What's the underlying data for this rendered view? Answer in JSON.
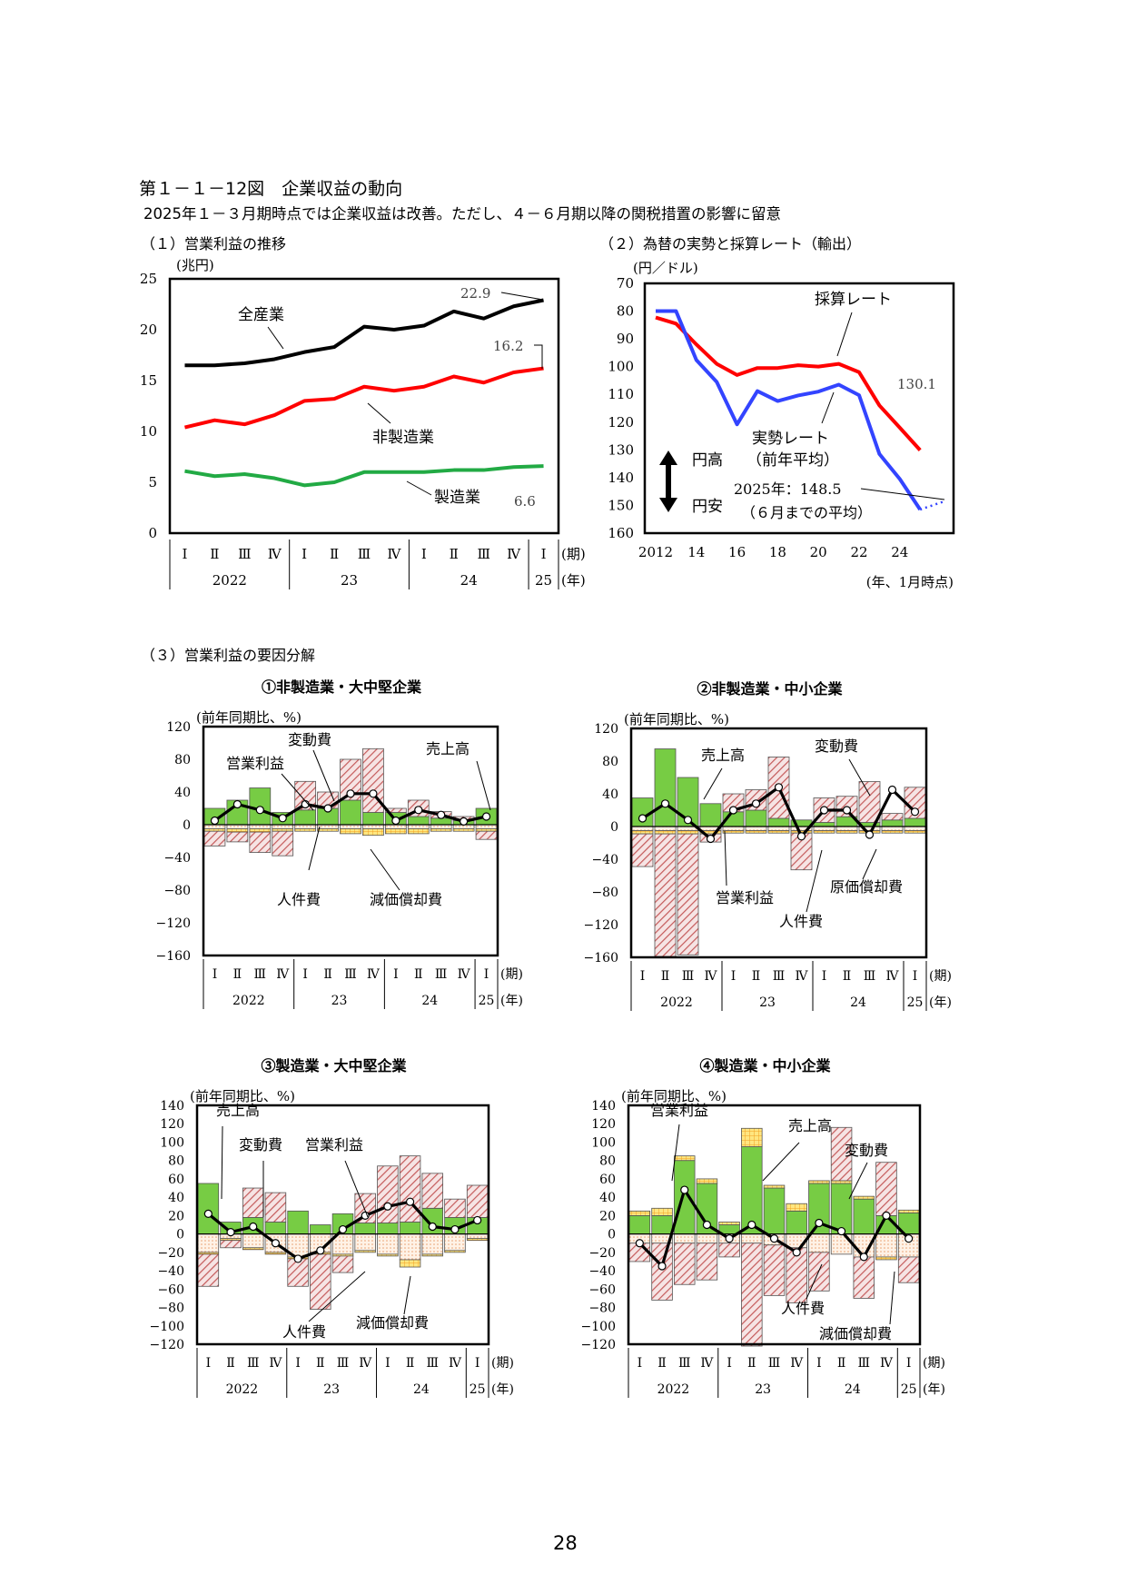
{
  "header": {
    "title": "第１－１－12図　企業収益の動向",
    "subtitle": "2025年１－３月期時点では企業収益は改善。ただし、４－６月期以降の関税措置の影響に留意",
    "section1": "（１）営業利益の推移",
    "section2": "（２）為替の実勢と採算レート（輸出）",
    "section3": "（３）営業利益の要因分解"
  },
  "page_number": "28",
  "colors": {
    "all": "#000000",
    "nonmfg": "#ff0000",
    "mfg": "#22aa44",
    "saisan": "#ff0000",
    "jissei": "#3344ff",
    "sales": "#77cc44",
    "varcost": "#cc7777",
    "labor": "#ffe0c8",
    "depr": "#ffcc33"
  },
  "chart_data": [
    {
      "id": "chart1",
      "type": "line",
      "unit": "(兆円)",
      "ylim": [
        0,
        25
      ],
      "yticks": [
        "0",
        "5",
        "10",
        "15",
        "20",
        "25"
      ],
      "quarters": [
        "Ⅰ",
        "Ⅱ",
        "Ⅲ",
        "Ⅳ",
        "Ⅰ",
        "Ⅱ",
        "Ⅲ",
        "Ⅳ",
        "Ⅰ",
        "Ⅱ",
        "Ⅲ",
        "Ⅳ",
        "Ⅰ"
      ],
      "years": [
        "2022",
        "23",
        "24",
        "25"
      ],
      "period_label": "(期)",
      "year_label": "(年)",
      "series": [
        {
          "name": "全産業",
          "values": [
            16.5,
            16.5,
            16.7,
            17.1,
            17.8,
            18.3,
            20.3,
            20.0,
            20.4,
            21.8,
            21.1,
            22.3,
            22.9
          ]
        },
        {
          "name": "非製造業",
          "values": [
            10.4,
            11.1,
            10.7,
            11.6,
            13.0,
            13.2,
            14.4,
            14.0,
            14.4,
            15.4,
            14.8,
            15.8,
            16.2
          ]
        },
        {
          "name": "製造業",
          "values": [
            6.1,
            5.6,
            5.8,
            5.4,
            4.7,
            5.0,
            6.0,
            6.0,
            6.0,
            6.2,
            6.2,
            6.5,
            6.6
          ]
        }
      ],
      "annotations": [
        "22.9",
        "16.2",
        "6.6"
      ]
    },
    {
      "id": "chart2",
      "type": "line",
      "unit": "(円／ドル)",
      "ylim": [
        70,
        160
      ],
      "inverted_y": true,
      "yticks": [
        "70",
        "80",
        "90",
        "100",
        "110",
        "120",
        "130",
        "140",
        "150",
        "160"
      ],
      "xticks": [
        "2012",
        "14",
        "16",
        "18",
        "20",
        "22",
        "24"
      ],
      "x_axis_note": "(年、1月時点)",
      "series": [
        {
          "name": "採算レート",
          "x": [
            2012,
            2013,
            2014,
            2015,
            2016,
            2017,
            2018,
            2019,
            2020,
            2021,
            2022,
            2023,
            2024,
            2025
          ],
          "values": [
            82.3,
            84.5,
            92.0,
            99.0,
            103.0,
            100.5,
            100.5,
            99.5,
            100.0,
            99.0,
            102.0,
            114.0,
            122.0,
            130.1
          ]
        },
        {
          "name": "実勢レート",
          "x": [
            2012,
            2013,
            2014,
            2015,
            2016,
            2017,
            2018,
            2019,
            2020,
            2021,
            2022,
            2023,
            2024,
            2025
          ],
          "values": [
            80.0,
            80.0,
            97.6,
            105.5,
            120.8,
            108.8,
            112.4,
            110.4,
            109.0,
            106.5,
            110.3,
            131.5,
            140.5,
            151.5
          ]
        }
      ],
      "annotations": {
        "saisan_label": "採算レート",
        "jissei_label": "実勢レート",
        "jissei_sub": "（前年平均）",
        "value_130": "130.1",
        "avg_2025": "2025年：148.5",
        "avg_sub": "（６月までの平均）",
        "yen_strong": "円高",
        "yen_weak": "円安"
      }
    },
    {
      "id": "chart3a",
      "type": "bar",
      "title": "①非製造業・大中堅企業",
      "unit": "(前年同期比、%)",
      "ylim": [
        -160,
        120
      ],
      "yticks": [
        "120",
        "80",
        "40",
        "0",
        "−40",
        "−80",
        "−120",
        "−160"
      ],
      "sales": [
        20,
        30,
        45,
        15,
        18,
        20,
        30,
        15,
        15,
        10,
        8,
        5,
        20
      ],
      "varcost": [
        -18,
        -12,
        -25,
        -30,
        35,
        20,
        50,
        78,
        5,
        20,
        8,
        5,
        -10
      ],
      "labor": [
        -5,
        -5,
        -5,
        -5,
        -5,
        -5,
        -5,
        -5,
        -5,
        -5,
        -5,
        -5,
        -5
      ],
      "depr": [
        -3,
        -4,
        -4,
        -3,
        -3,
        -3,
        -6,
        -8,
        -6,
        -6,
        -3,
        -3,
        -3
      ],
      "profit": [
        5,
        25,
        18,
        8,
        25,
        20,
        38,
        38,
        5,
        18,
        12,
        4,
        10
      ],
      "labels": [
        "売上高",
        "変動費",
        "営業利益",
        "人件費",
        "減価償却費"
      ]
    },
    {
      "id": "chart3b",
      "type": "bar",
      "title": "②非製造業・中小企業",
      "unit": "(前年同期比、%)",
      "ylim": [
        -160,
        120
      ],
      "yticks": [
        "120",
        "80",
        "40",
        "0",
        "−40",
        "−80",
        "−120",
        "−160"
      ],
      "sales": [
        35,
        95,
        60,
        28,
        18,
        20,
        10,
        8,
        5,
        12,
        5,
        8,
        10
      ],
      "varcost": [
        -40,
        -150,
        -148,
        -10,
        22,
        25,
        75,
        -45,
        30,
        25,
        50,
        8,
        38
      ],
      "labor": [
        -5,
        -5,
        -5,
        -5,
        -5,
        -5,
        -5,
        -5,
        -5,
        -5,
        -5,
        -5,
        -5
      ],
      "depr": [
        -4,
        -4,
        -4,
        -4,
        -3,
        -3,
        -3,
        -3,
        -3,
        -3,
        -3,
        -3,
        -3
      ],
      "profit": [
        10,
        28,
        8,
        -15,
        20,
        28,
        48,
        -12,
        20,
        20,
        -10,
        45,
        18
      ],
      "labels": [
        "売上高",
        "変動費",
        "営業利益",
        "人件費",
        "原価償却費"
      ]
    },
    {
      "id": "chart3c",
      "type": "bar",
      "title": "③製造業・大中堅企業",
      "unit": "(前年同期比、%)",
      "ylim": [
        -120,
        140
      ],
      "yticks": [
        "140",
        "120",
        "100",
        "80",
        "60",
        "40",
        "20",
        "0",
        "−20",
        "−40",
        "−60",
        "−80",
        "−100",
        "−120"
      ],
      "sales": [
        55,
        13,
        18,
        13,
        25,
        10,
        22,
        12,
        12,
        13,
        28,
        18,
        18
      ],
      "varcost": [
        -35,
        -8,
        32,
        32,
        -30,
        -60,
        -18,
        32,
        62,
        72,
        38,
        20,
        35
      ],
      "labor": [
        -20,
        -5,
        -15,
        -20,
        -25,
        -20,
        -22,
        -18,
        -22,
        -28,
        -22,
        -18,
        -5
      ],
      "depr": [
        -2,
        -2,
        -2,
        -2,
        -2,
        -2,
        -2,
        -2,
        -2,
        -8,
        -2,
        -2,
        -2
      ],
      "profit": [
        22,
        2,
        8,
        -10,
        -27,
        -18,
        5,
        20,
        30,
        35,
        8,
        5,
        15
      ],
      "labels": [
        "売上高",
        "変動費",
        "営業利益",
        "人件費",
        "減価償却費"
      ]
    },
    {
      "id": "chart3d",
      "type": "bar",
      "title": "④製造業・中小企業",
      "unit": "(前年同期比、%)",
      "ylim": [
        -120,
        140
      ],
      "yticks": [
        "140",
        "120",
        "100",
        "80",
        "60",
        "40",
        "20",
        "0",
        "−20",
        "−40",
        "−60",
        "−80",
        "−100",
        "−120"
      ],
      "sales": [
        20,
        20,
        80,
        55,
        10,
        95,
        50,
        25,
        55,
        55,
        38,
        20,
        23
      ],
      "varcost": [
        -20,
        -62,
        -45,
        -40,
        -15,
        -112,
        -55,
        -60,
        -42,
        58,
        -45,
        58,
        -28
      ],
      "labor": [
        -10,
        -10,
        -10,
        -10,
        -10,
        -10,
        -12,
        -15,
        -20,
        -22,
        -25,
        -25,
        -25
      ],
      "depr": [
        5,
        8,
        5,
        5,
        3,
        20,
        3,
        8,
        3,
        3,
        3,
        -3,
        3
      ],
      "profit": [
        -10,
        -35,
        48,
        10,
        -5,
        10,
        -5,
        -20,
        12,
        3,
        -25,
        20,
        -5
      ],
      "labels": [
        "営業利益",
        "売上高",
        "変動費",
        "人件費",
        "減価償却費"
      ]
    }
  ]
}
